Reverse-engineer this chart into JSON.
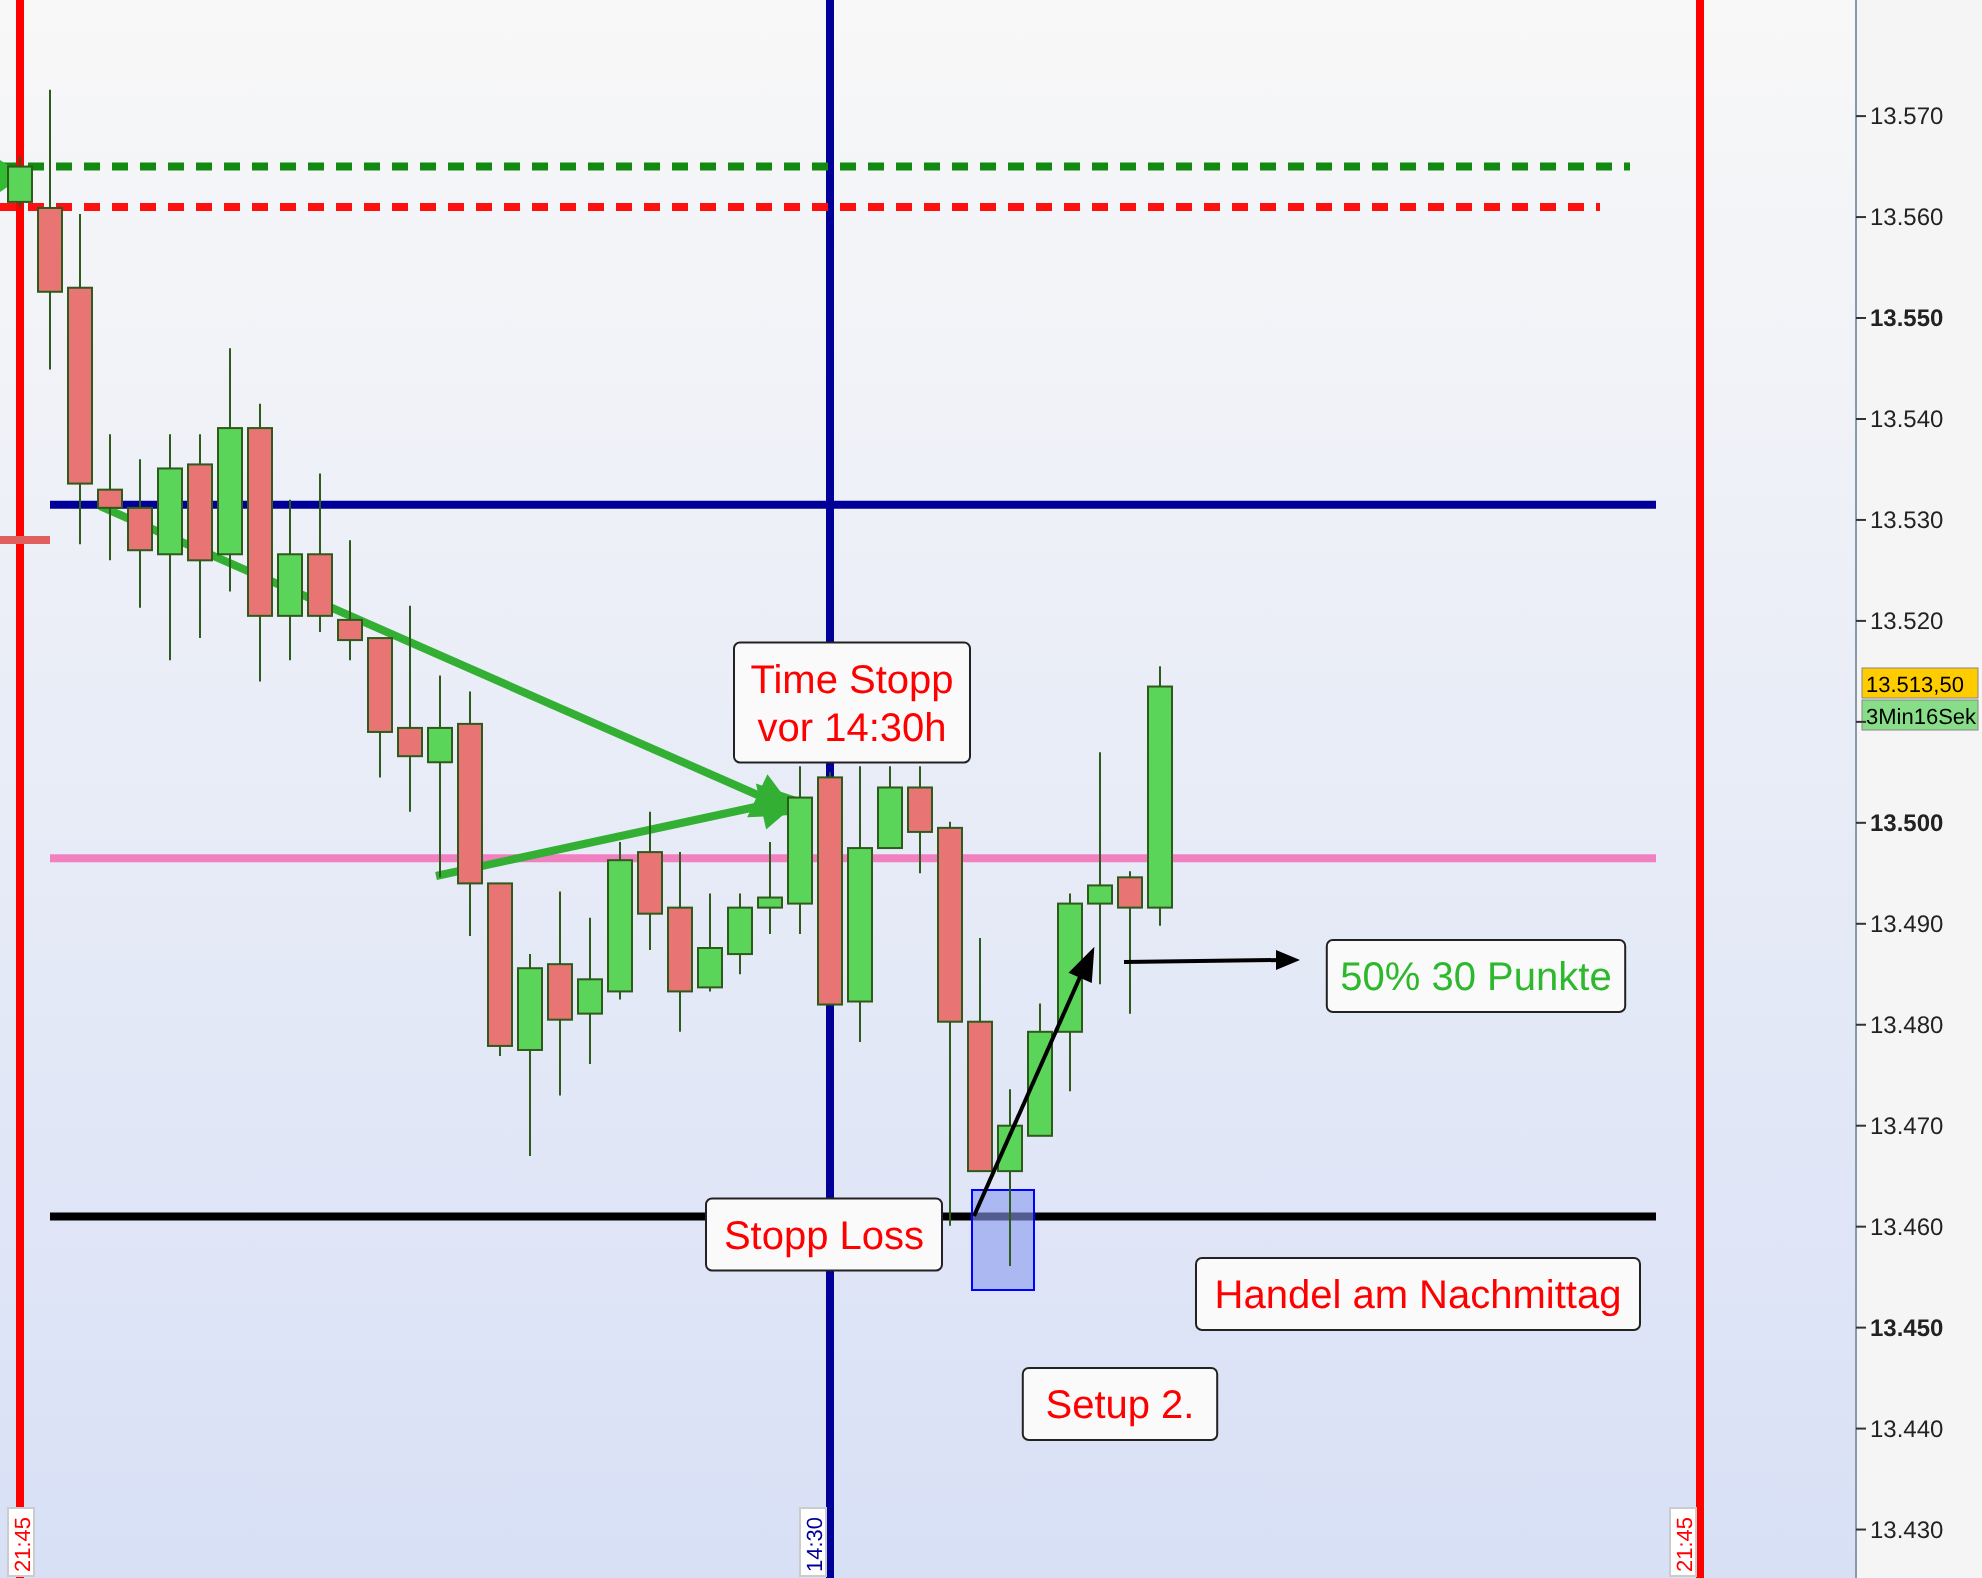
{
  "chart_data": {
    "type": "candlestick",
    "categories": [
      "21:45",
      null,
      null,
      null,
      null,
      null,
      null,
      null,
      null,
      null,
      null,
      null,
      null,
      null,
      null,
      null,
      null,
      null,
      null,
      null,
      null,
      null,
      null,
      null,
      null,
      null,
      null,
      "14:30",
      null,
      null,
      null,
      null,
      null,
      null,
      null,
      null,
      null,
      null,
      null,
      null,
      null,
      null,
      null,
      null,
      null,
      null,
      null,
      null,
      null,
      null,
      null,
      null,
      null,
      null,
      null,
      null,
      "21:45",
      null,
      null,
      null,
      null,
      null
    ],
    "ohlc": [
      [
        13561.5,
        13566,
        13561,
        13565
      ],
      [
        13560.9,
        13572.6,
        13544.9,
        13552.6
      ],
      [
        13553,
        13560.3,
        13527.6,
        13533.6
      ],
      [
        13533,
        13538.5,
        13526,
        13531.2
      ],
      [
        13531.2,
        13536,
        13521.3,
        13527
      ],
      [
        13526.6,
        13538.5,
        13516.1,
        13535.1
      ],
      [
        13535.5,
        13538.5,
        13518.3,
        13526
      ],
      [
        13526.6,
        13547,
        13522.9,
        13539.1
      ],
      [
        13539.1,
        13541.5,
        13514,
        13520.5
      ],
      [
        13520.5,
        13532,
        13516.1,
        13526.6
      ],
      [
        13526.6,
        13534.6,
        13518.9,
        13520.5
      ],
      [
        13520.1,
        13528,
        13516.1,
        13518.1
      ],
      [
        13518.3,
        13518.3,
        13504.5,
        13509
      ],
      [
        13509.4,
        13521.5,
        13501.1,
        13506.6
      ],
      [
        13506,
        13514.6,
        13494.6,
        13509.4
      ],
      [
        13509.8,
        13513,
        13488.8,
        13494
      ],
      [
        13494,
        13494,
        13476.9,
        13477.9
      ],
      [
        13477.5,
        13487,
        13467,
        13485.6
      ],
      [
        13486,
        13493.2,
        13473,
        13480.5
      ],
      [
        13481.1,
        13490.6,
        13476.1,
        13484.5
      ],
      [
        13483.3,
        13498.1,
        13482.5,
        13496.3
      ],
      [
        13497.1,
        13501.1,
        13487.4,
        13491
      ],
      [
        13491.6,
        13497.1,
        13479.3,
        13483.3
      ],
      [
        13483.7,
        13493,
        13483.3,
        13487.6
      ],
      [
        13487,
        13493,
        13485,
        13491.6
      ],
      [
        13491.6,
        13498.1,
        13489,
        13492.6
      ],
      [
        13492,
        13505.6,
        13489,
        13502.5
      ],
      [
        13504.5,
        13505,
        13482,
        13482
      ],
      [
        13482.3,
        13505.6,
        13478.3,
        13497.5
      ],
      [
        13497.5,
        13505.6,
        13497.5,
        13503.5
      ],
      [
        13503.5,
        13505.6,
        13495,
        13499.1
      ],
      [
        13499.5,
        13500.1,
        13460.1,
        13480.3
      ],
      [
        13480.3,
        13488.6,
        13465.5,
        13465.5
      ],
      [
        13465.5,
        13473.6,
        13456.1,
        13470
      ],
      [
        13469,
        13482.1,
        13469,
        13479.3
      ],
      [
        13479.3,
        13493,
        13473.4,
        13492
      ],
      [
        13492,
        13507,
        13484,
        13493.8
      ],
      [
        13494.6,
        13495.2,
        13481.1,
        13491.6
      ],
      [
        13491.6,
        13515.5,
        13489.8,
        13513.5
      ],
      null,
      null,
      null,
      null,
      null,
      null,
      null,
      null,
      null,
      null,
      null,
      null,
      null,
      null,
      null,
      null,
      null,
      null,
      null,
      null,
      null,
      null,
      null
    ],
    "ylim": [
      13425.2,
      13581.5
    ],
    "yticks": [
      {
        "value": 13430,
        "label": "13.430"
      },
      {
        "value": 13440,
        "label": "13.440"
      },
      {
        "value": 13450,
        "label": "13.450"
      },
      {
        "value": 13460,
        "label": "13.460"
      },
      {
        "value": 13470,
        "label": "13.470"
      },
      {
        "value": 13480,
        "label": "13.480"
      },
      {
        "value": 13490,
        "label": "13.490"
      },
      {
        "value": 13500,
        "label": "13.500"
      },
      {
        "value": 13510,
        "label": null
      },
      {
        "value": 13520,
        "label": "13.520"
      },
      {
        "value": 13530,
        "label": "13.530"
      },
      {
        "value": 13540,
        "label": "13.540"
      },
      {
        "value": 13550,
        "label": "13.550"
      },
      {
        "value": 13560,
        "label": "13.560"
      },
      {
        "value": 13570,
        "label": "13.570"
      }
    ],
    "ref_lines": [
      {
        "axis": "x",
        "value": "21:45",
        "color": "#ff0000"
      },
      {
        "axis": "x",
        "value": "14:30",
        "color": "#000099"
      },
      {
        "axis": "y",
        "value": 13565,
        "color": "#128a12",
        "line_style": "dashed"
      },
      {
        "axis": "y",
        "value": 13561,
        "color": "#ff1010",
        "line_style": "dashed"
      },
      {
        "axis": "y",
        "value": 13531.5,
        "color": "#000099",
        "line_style": "solid"
      },
      {
        "axis": "y",
        "value": 13496.5,
        "color": "#f080c0",
        "line_style": "solid"
      },
      {
        "axis": "y",
        "value": 13461,
        "color": "#000000",
        "line_style": "solid"
      }
    ],
    "annotations": [
      {
        "text": "Time Stopp\nvor 14:30h",
        "y": 13503
      },
      {
        "text": "Stopp Loss",
        "y": 13461
      },
      "50% 30 Punkte",
      "Handel am Nachmittag",
      "Setup 2.",
      "13.513,50",
      "3Min16Sek"
    ]
  }
}
